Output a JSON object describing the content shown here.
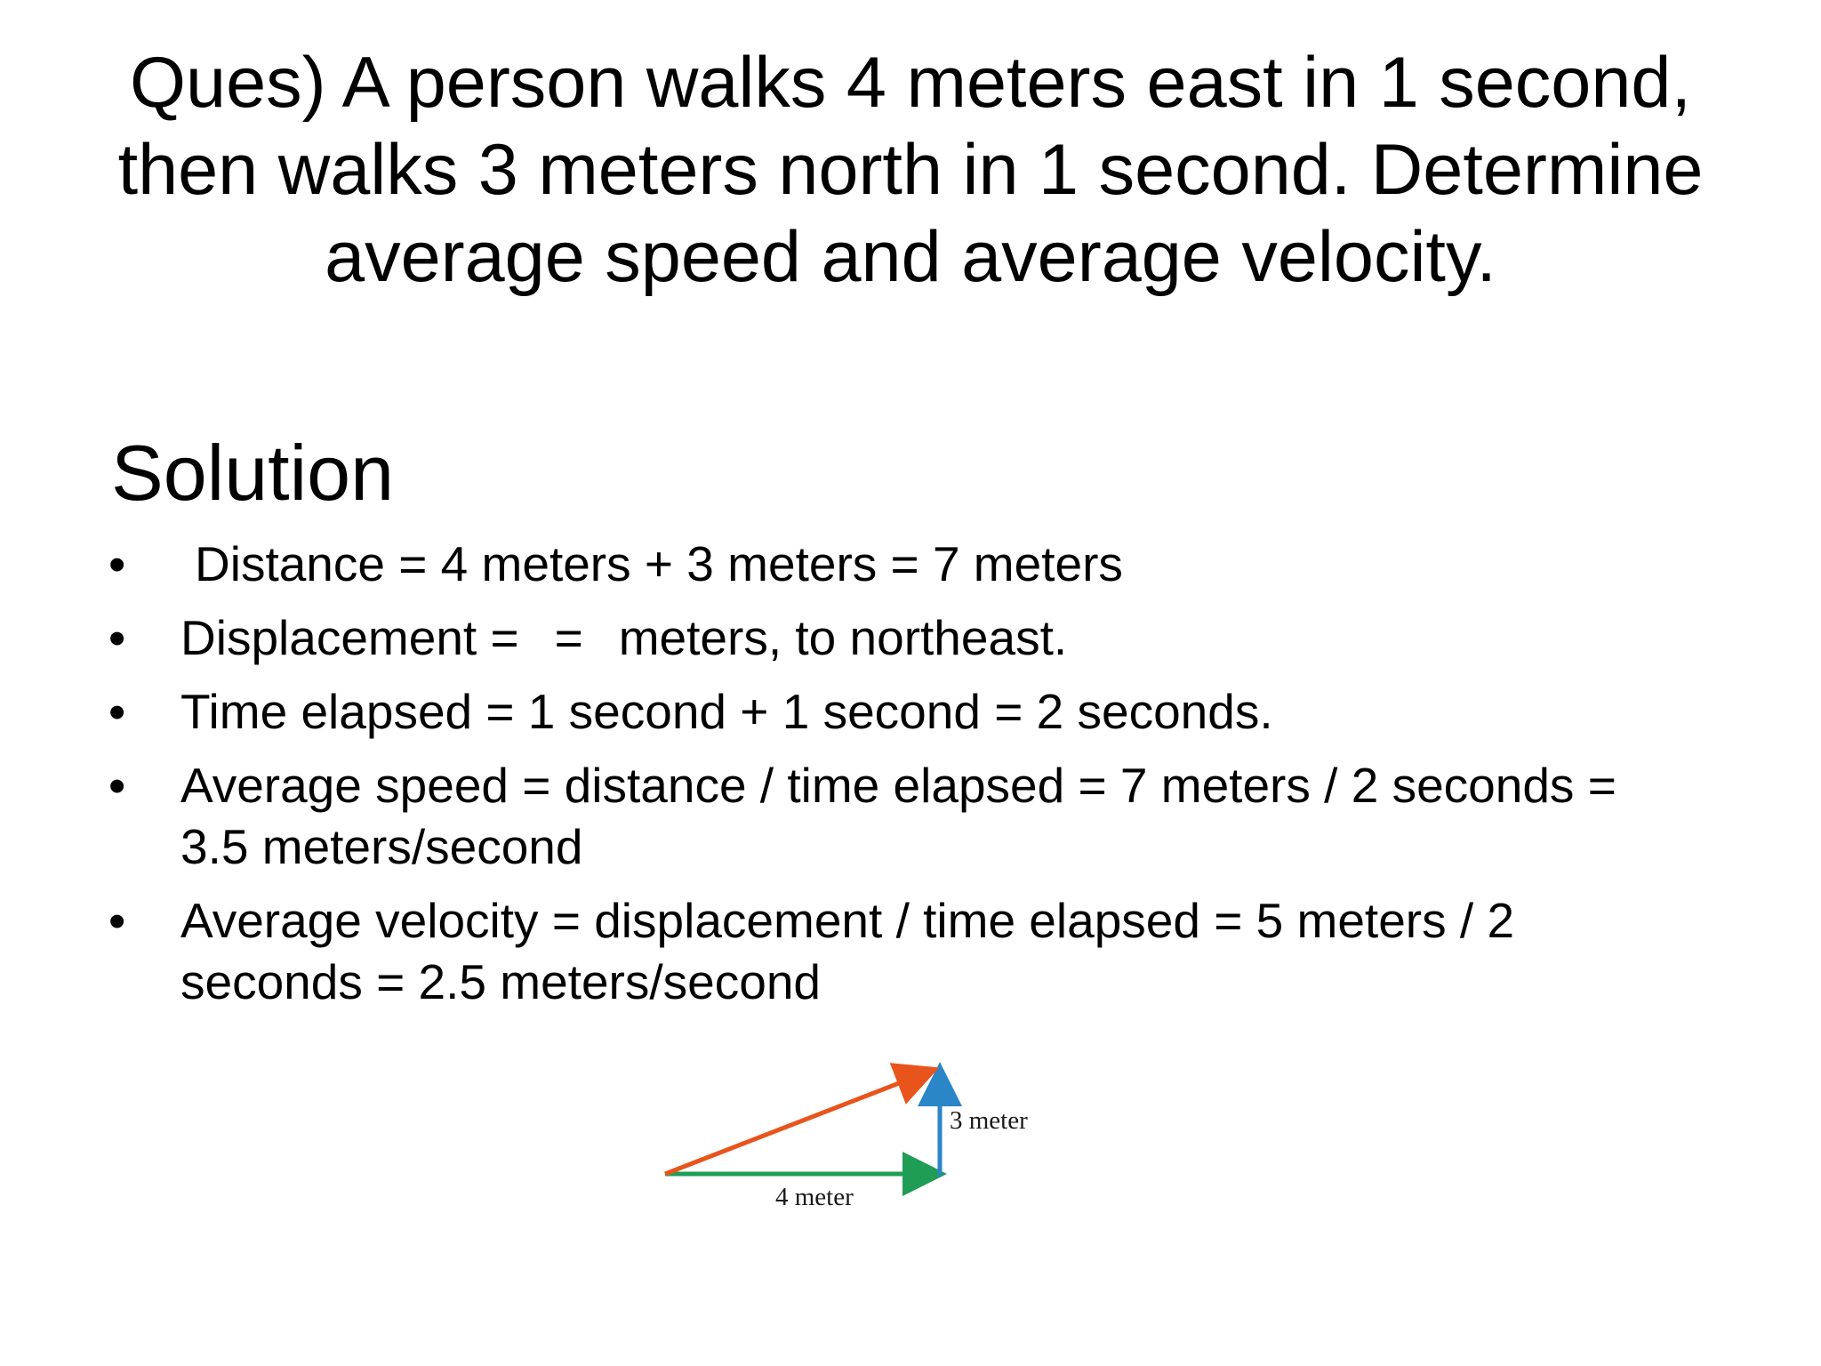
{
  "question": {
    "lines": [
      "Ques) A person walks 4 meters east in 1 second,",
      "then walks 3 meters north in 1 second. Determine",
      "average speed and average velocity."
    ]
  },
  "solution": {
    "heading": "Solution",
    "bullet_symbol": "•",
    "items": [
      {
        "text": "Distance = 4 meters + 3 meters = 7 meters"
      },
      {
        "part1": "Displacement =",
        "part2": "=",
        "part3": "meters, to northeast."
      },
      {
        "text": "Time elapsed = 1 second + 1 second = 2 seconds."
      },
      {
        "line1": "Average speed = distance / time elapsed = 7 meters / 2 seconds =",
        "line2": "3.5 meters/second"
      },
      {
        "line1": "Average velocity = displacement / time elapsed = 5 meters / 2",
        "line2": "seconds = 2.5 meters/second"
      }
    ]
  },
  "diagram": {
    "east_label": "4 meter",
    "north_label": "3 meter",
    "colors": {
      "east_vector": "#1f9d55",
      "north_vector": "#2a86c7",
      "resultant_vector": "#e8541c"
    }
  }
}
